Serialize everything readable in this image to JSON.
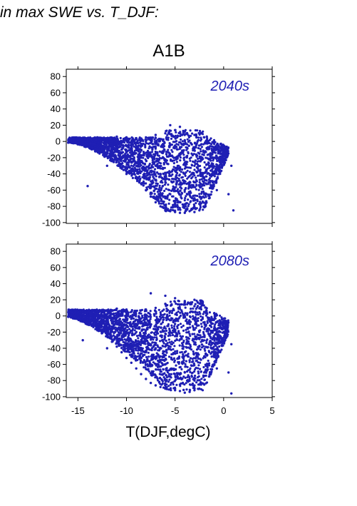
{
  "heading": "in max SWE vs. T_DJF:",
  "scenario": "A1B",
  "point_color": "#1f1fb4",
  "chart_data": [
    {
      "type": "scatter",
      "annotation": "2040s",
      "xlabel": "T(DJF,degC)",
      "xlim": [
        -16.2,
        5
      ],
      "ylim": [
        -101,
        89
      ],
      "xticks": [
        -15,
        -10,
        -5,
        0,
        5
      ],
      "yticks": [
        80,
        60,
        40,
        20,
        0,
        -20,
        -40,
        -60,
        -80,
        -100
      ],
      "points": [
        [
          -16.0,
          -1.5
        ],
        [
          -15.5,
          -2.0
        ],
        [
          -15.0,
          1.0
        ],
        [
          -14.5,
          3.0
        ],
        [
          -14.0,
          -3.0
        ],
        [
          -13.5,
          -5.0
        ],
        [
          -13.0,
          -8.0
        ],
        [
          -12.5,
          -10.0
        ],
        [
          -12.0,
          -15.0
        ],
        [
          -11.5,
          -18.0
        ],
        [
          -11.0,
          -22.0
        ],
        [
          -10.5,
          -28.0
        ],
        [
          -10.0,
          -32.0
        ],
        [
          -9.5,
          -38.0
        ],
        [
          -9.0,
          -45.0
        ],
        [
          -8.5,
          -52.0
        ],
        [
          -8.0,
          -60.0
        ],
        [
          -7.5,
          -68.0
        ],
        [
          -7.0,
          -75.0
        ],
        [
          -6.5,
          -80.0
        ],
        [
          -6.0,
          -84.0
        ],
        [
          -5.5,
          -86.0
        ],
        [
          -5.0,
          -87.0
        ],
        [
          -4.5,
          -88.0
        ],
        [
          -4.0,
          -88.0
        ],
        [
          -3.5,
          -86.0
        ],
        [
          -3.0,
          -87.0
        ],
        [
          -2.5,
          -85.0
        ],
        [
          -2.0,
          -80.0
        ],
        [
          -1.5,
          -70.0
        ],
        [
          -1.0,
          -55.0
        ],
        [
          -0.5,
          -40.0
        ],
        [
          0.0,
          -25.0
        ],
        [
          -0.5,
          -10.0
        ],
        [
          -1.0,
          0.0
        ],
        [
          -2.0,
          5.0
        ],
        [
          -3.0,
          8.0
        ],
        [
          -4.0,
          12.0
        ],
        [
          -5.0,
          14.0
        ],
        [
          -6.0,
          10.0
        ],
        [
          -7.0,
          8.0
        ],
        [
          -8.0,
          5.0
        ],
        [
          -9.0,
          4.0
        ],
        [
          -10.0,
          5.0
        ],
        [
          -11.0,
          6.0
        ],
        [
          -12.0,
          4.0
        ],
        [
          -13.0,
          5.0
        ],
        [
          -14.0,
          2.0
        ],
        [
          -12.0,
          -30.0
        ],
        [
          -10.0,
          -40.0
        ],
        [
          -8.0,
          -35.0
        ],
        [
          -6.0,
          -50.0
        ],
        [
          -4.0,
          -60.0
        ],
        [
          -2.0,
          -45.0
        ],
        [
          -3.0,
          -30.0
        ],
        [
          -5.0,
          -20.0
        ],
        [
          -7.0,
          -15.0
        ],
        [
          -9.0,
          -10.0
        ],
        [
          -6.0,
          -70.0
        ],
        [
          -3.0,
          -70.0
        ],
        [
          -4.0,
          -40.0
        ],
        [
          -5.0,
          -5.0
        ],
        [
          -7.0,
          -30.0
        ],
        [
          -8.5,
          -20.0
        ],
        [
          -2.5,
          -15.0
        ],
        [
          -1.5,
          -30.0
        ],
        [
          -0.7,
          -60.0
        ],
        [
          0.8,
          -30.0
        ],
        [
          0.5,
          -65.0
        ],
        [
          1.0,
          -85.0
        ],
        [
          -14.0,
          -55.0
        ],
        [
          -7.5,
          -55.0
        ],
        [
          -10.5,
          -10.0
        ],
        [
          -11.5,
          -5.0
        ],
        [
          -4.5,
          -75.0
        ],
        [
          -2.0,
          -65.0
        ],
        [
          -6.5,
          -40.0
        ],
        [
          -3.5,
          -50.0
        ],
        [
          -5.5,
          -65.0
        ],
        [
          -9.5,
          -25.0
        ],
        [
          -1.0,
          -20.0
        ],
        [
          -2.8,
          5.0
        ],
        [
          -5.5,
          20.0
        ],
        [
          -4.5,
          18.0
        ]
      ]
    },
    {
      "type": "scatter",
      "annotation": "2080s",
      "xlabel": "T(DJF,degC)",
      "xlim": [
        -16.2,
        5
      ],
      "ylim": [
        -101,
        89
      ],
      "xticks": [
        -15,
        -10,
        -5,
        0,
        5
      ],
      "yticks": [
        80,
        60,
        40,
        20,
        0,
        -20,
        -40,
        -60,
        -80,
        -100
      ],
      "points": [
        [
          -16.0,
          -1.0
        ],
        [
          -15.5,
          -3.0
        ],
        [
          -15.0,
          4.0
        ],
        [
          -14.5,
          6.0
        ],
        [
          -14.0,
          -5.0
        ],
        [
          -13.5,
          -10.0
        ],
        [
          -13.0,
          -15.0
        ],
        [
          -12.5,
          -20.0
        ],
        [
          -12.0,
          -25.0
        ],
        [
          -11.5,
          -32.0
        ],
        [
          -11.0,
          -38.0
        ],
        [
          -10.5,
          -45.0
        ],
        [
          -10.0,
          -52.0
        ],
        [
          -9.5,
          -58.0
        ],
        [
          -9.0,
          -65.0
        ],
        [
          -8.5,
          -72.0
        ],
        [
          -8.0,
          -78.0
        ],
        [
          -7.5,
          -83.0
        ],
        [
          -7.0,
          -86.0
        ],
        [
          -6.5,
          -88.0
        ],
        [
          -6.0,
          -90.0
        ],
        [
          -5.5,
          -91.0
        ],
        [
          -5.0,
          -92.0
        ],
        [
          -4.5,
          -93.0
        ],
        [
          -4.0,
          -95.0
        ],
        [
          -3.5,
          -94.0
        ],
        [
          -3.0,
          -92.0
        ],
        [
          -2.5,
          -90.0
        ],
        [
          -2.0,
          -85.0
        ],
        [
          -1.5,
          -75.0
        ],
        [
          -1.0,
          -60.0
        ],
        [
          -0.5,
          -45.0
        ],
        [
          0.0,
          -30.0
        ],
        [
          -0.5,
          -15.0
        ],
        [
          -1.0,
          -5.0
        ],
        [
          -2.0,
          5.0
        ],
        [
          -3.0,
          12.0
        ],
        [
          -4.0,
          18.0
        ],
        [
          -5.0,
          22.0
        ],
        [
          -6.0,
          15.0
        ],
        [
          -7.0,
          10.0
        ],
        [
          -8.0,
          8.0
        ],
        [
          -9.0,
          6.0
        ],
        [
          -10.0,
          8.0
        ],
        [
          -11.0,
          9.0
        ],
        [
          -12.0,
          6.0
        ],
        [
          -13.0,
          7.0
        ],
        [
          -14.0,
          4.0
        ],
        [
          -12.0,
          -40.0
        ],
        [
          -10.0,
          -30.0
        ],
        [
          -8.0,
          -45.0
        ],
        [
          -6.0,
          -60.0
        ],
        [
          -4.0,
          -70.0
        ],
        [
          -2.0,
          -50.0
        ],
        [
          -3.0,
          -35.0
        ],
        [
          -5.0,
          -25.0
        ],
        [
          -7.0,
          -20.0
        ],
        [
          -9.0,
          -15.0
        ],
        [
          -6.0,
          -80.0
        ],
        [
          -3.0,
          -80.0
        ],
        [
          -4.0,
          -45.0
        ],
        [
          -5.0,
          -10.0
        ],
        [
          -7.0,
          -40.0
        ],
        [
          -8.5,
          -25.0
        ],
        [
          -2.5,
          -20.0
        ],
        [
          -1.5,
          -35.0
        ],
        [
          -0.7,
          -65.0
        ],
        [
          0.8,
          -35.0
        ],
        [
          0.5,
          -70.0
        ],
        [
          0.8,
          -96.0
        ],
        [
          -14.5,
          -30.0
        ],
        [
          -7.5,
          -60.0
        ],
        [
          -10.5,
          -15.0
        ],
        [
          -11.5,
          -8.0
        ],
        [
          -4.5,
          -85.0
        ],
        [
          -2.0,
          -70.0
        ],
        [
          -6.5,
          -50.0
        ],
        [
          -3.5,
          -55.0
        ],
        [
          -5.5,
          -75.0
        ],
        [
          -9.5,
          -35.0
        ],
        [
          -1.0,
          -25.0
        ],
        [
          -7.5,
          28.0
        ],
        [
          -6.0,
          25.0
        ],
        [
          -3.0,
          20.0
        ]
      ]
    }
  ]
}
